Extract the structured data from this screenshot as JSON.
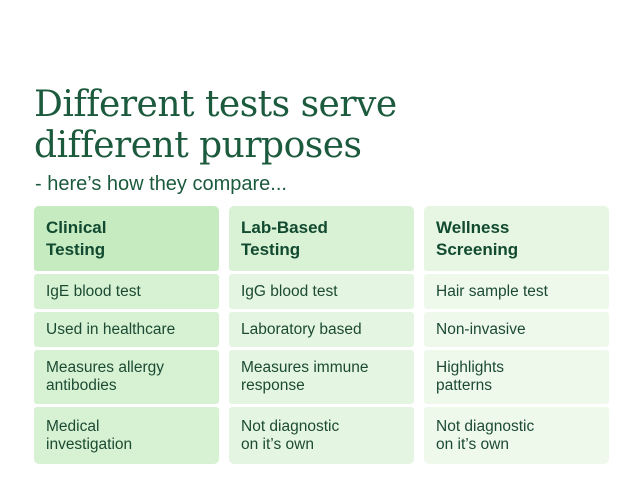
{
  "title": "Different tests serve\ndifferent purposes",
  "subtitle": "- here’s how they compare...",
  "columns": [
    {
      "header": "Clinical\nTesting",
      "rows": [
        "IgE blood test",
        "Used in healthcare",
        "Measures allergy\nantibodies",
        "Medical\ninvestigation"
      ]
    },
    {
      "header": "Lab-Based\nTesting",
      "rows": [
        "IgG blood test",
        "Laboratory based",
        "Measures immune\nresponse",
        "Not diagnostic\non it’s own"
      ]
    },
    {
      "header": "Wellness\nScreening",
      "rows": [
        "Hair sample test",
        "Non-invasive",
        "Highlights\npatterns",
        "Not diagnostic\non it’s own"
      ]
    }
  ],
  "colors": {
    "title": "#1c5a3d",
    "column_1": "#d7f2d3",
    "column_2": "#e4f6e1",
    "column_3": "#eef9ec"
  }
}
